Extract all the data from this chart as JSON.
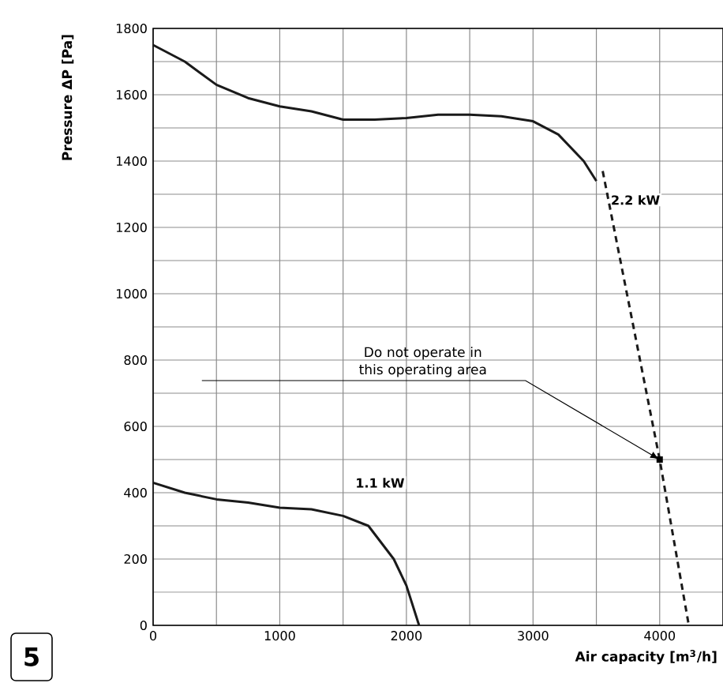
{
  "chart_data": {
    "type": "line",
    "xlabel": "Air capacity [m$^{3}$/h]",
    "ylabel": "Pressure ΔP [Pa]",
    "xlim": [
      0,
      4500
    ],
    "ylim": [
      0,
      1800
    ],
    "xticks": [
      0,
      1000,
      2000,
      3000,
      4000
    ],
    "yticks": [
      0,
      200,
      400,
      600,
      800,
      1000,
      1200,
      1400,
      1600,
      1800
    ],
    "grid": true,
    "marker": "none",
    "series": [
      {
        "name": "2.2 kW",
        "color": "#1a1a1a",
        "line_style": "solid",
        "x": [
          0,
          250,
          500,
          750,
          1000,
          1250,
          1500,
          1750,
          2000,
          2250,
          2500,
          2750,
          3000,
          3200,
          3400,
          3500
        ],
        "values": [
          1750,
          1700,
          1630,
          1590,
          1565,
          1550,
          1525,
          1525,
          1530,
          1540,
          1540,
          1535,
          1520,
          1480,
          1400,
          1340
        ]
      },
      {
        "color": "#1a1a1a",
        "line_style": "dashed",
        "x": [
          3550,
          4000,
          4230
        ],
        "values": [
          1370,
          500,
          0
        ]
      },
      {
        "name": "1.1 kW",
        "color": "#1a1a1a",
        "line_style": "solid",
        "x": [
          0,
          250,
          500,
          750,
          1000,
          1250,
          1500,
          1700,
          1900,
          2000,
          2100
        ],
        "values": [
          430,
          400,
          380,
          370,
          355,
          350,
          330,
          300,
          200,
          120,
          0
        ]
      }
    ],
    "annotations": [
      {
        "text": "Do not operate in this operating area",
        "x": 4000,
        "y": 500
      },
      "5"
    ]
  }
}
